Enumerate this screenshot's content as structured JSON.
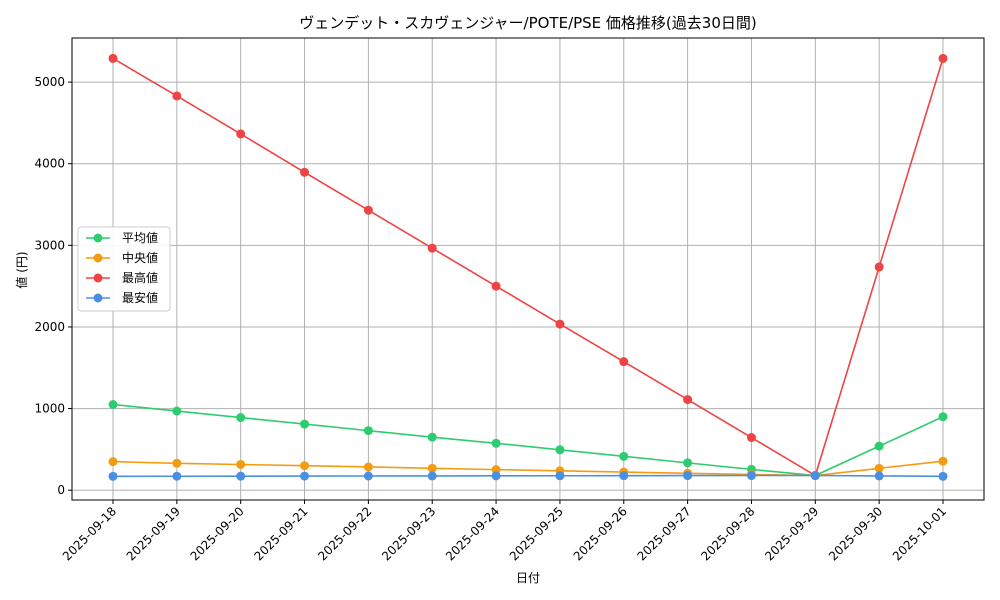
{
  "chart_data": {
    "type": "line",
    "title": "ヴェンデット・スカヴェンジャー/POTE/PSE 価格推移(過去30日間)",
    "xlabel": "日付",
    "ylabel": "値 (円)",
    "ylim": [
      -120,
      5540
    ],
    "yticks": [
      0,
      1000,
      2000,
      3000,
      4000,
      5000
    ],
    "grid": true,
    "legend_position": "center-left",
    "categories": [
      "2025-09-18",
      "2025-09-19",
      "2025-09-20",
      "2025-09-21",
      "2025-09-22",
      "2025-09-23",
      "2025-09-24",
      "2025-09-25",
      "2025-09-26",
      "2025-09-27",
      "2025-09-28",
      "2025-09-29",
      "2025-09-30",
      "2025-10-01"
    ],
    "series": [
      {
        "name": "平均値",
        "color": "#2ecc71",
        "values": [
          1050,
          970,
          890,
          810,
          730,
          650,
          575,
          495,
          415,
          335,
          255,
          180,
          540,
          900
        ]
      },
      {
        "name": "中央値",
        "color": "#f39c12",
        "values": [
          350,
          330,
          315,
          300,
          285,
          268,
          252,
          238,
          222,
          207,
          193,
          180,
          268,
          355
        ]
      },
      {
        "name": "最高値",
        "color": "#ef4444",
        "values": [
          5290,
          4830,
          4365,
          3895,
          3430,
          2965,
          2500,
          2035,
          1575,
          1110,
          645,
          180,
          2735,
          5290
        ]
      },
      {
        "name": "最安値",
        "color": "#4a90e2",
        "values": [
          170,
          171,
          172,
          173,
          174,
          175,
          176,
          177,
          178,
          179,
          180,
          180,
          175,
          170
        ]
      }
    ]
  }
}
